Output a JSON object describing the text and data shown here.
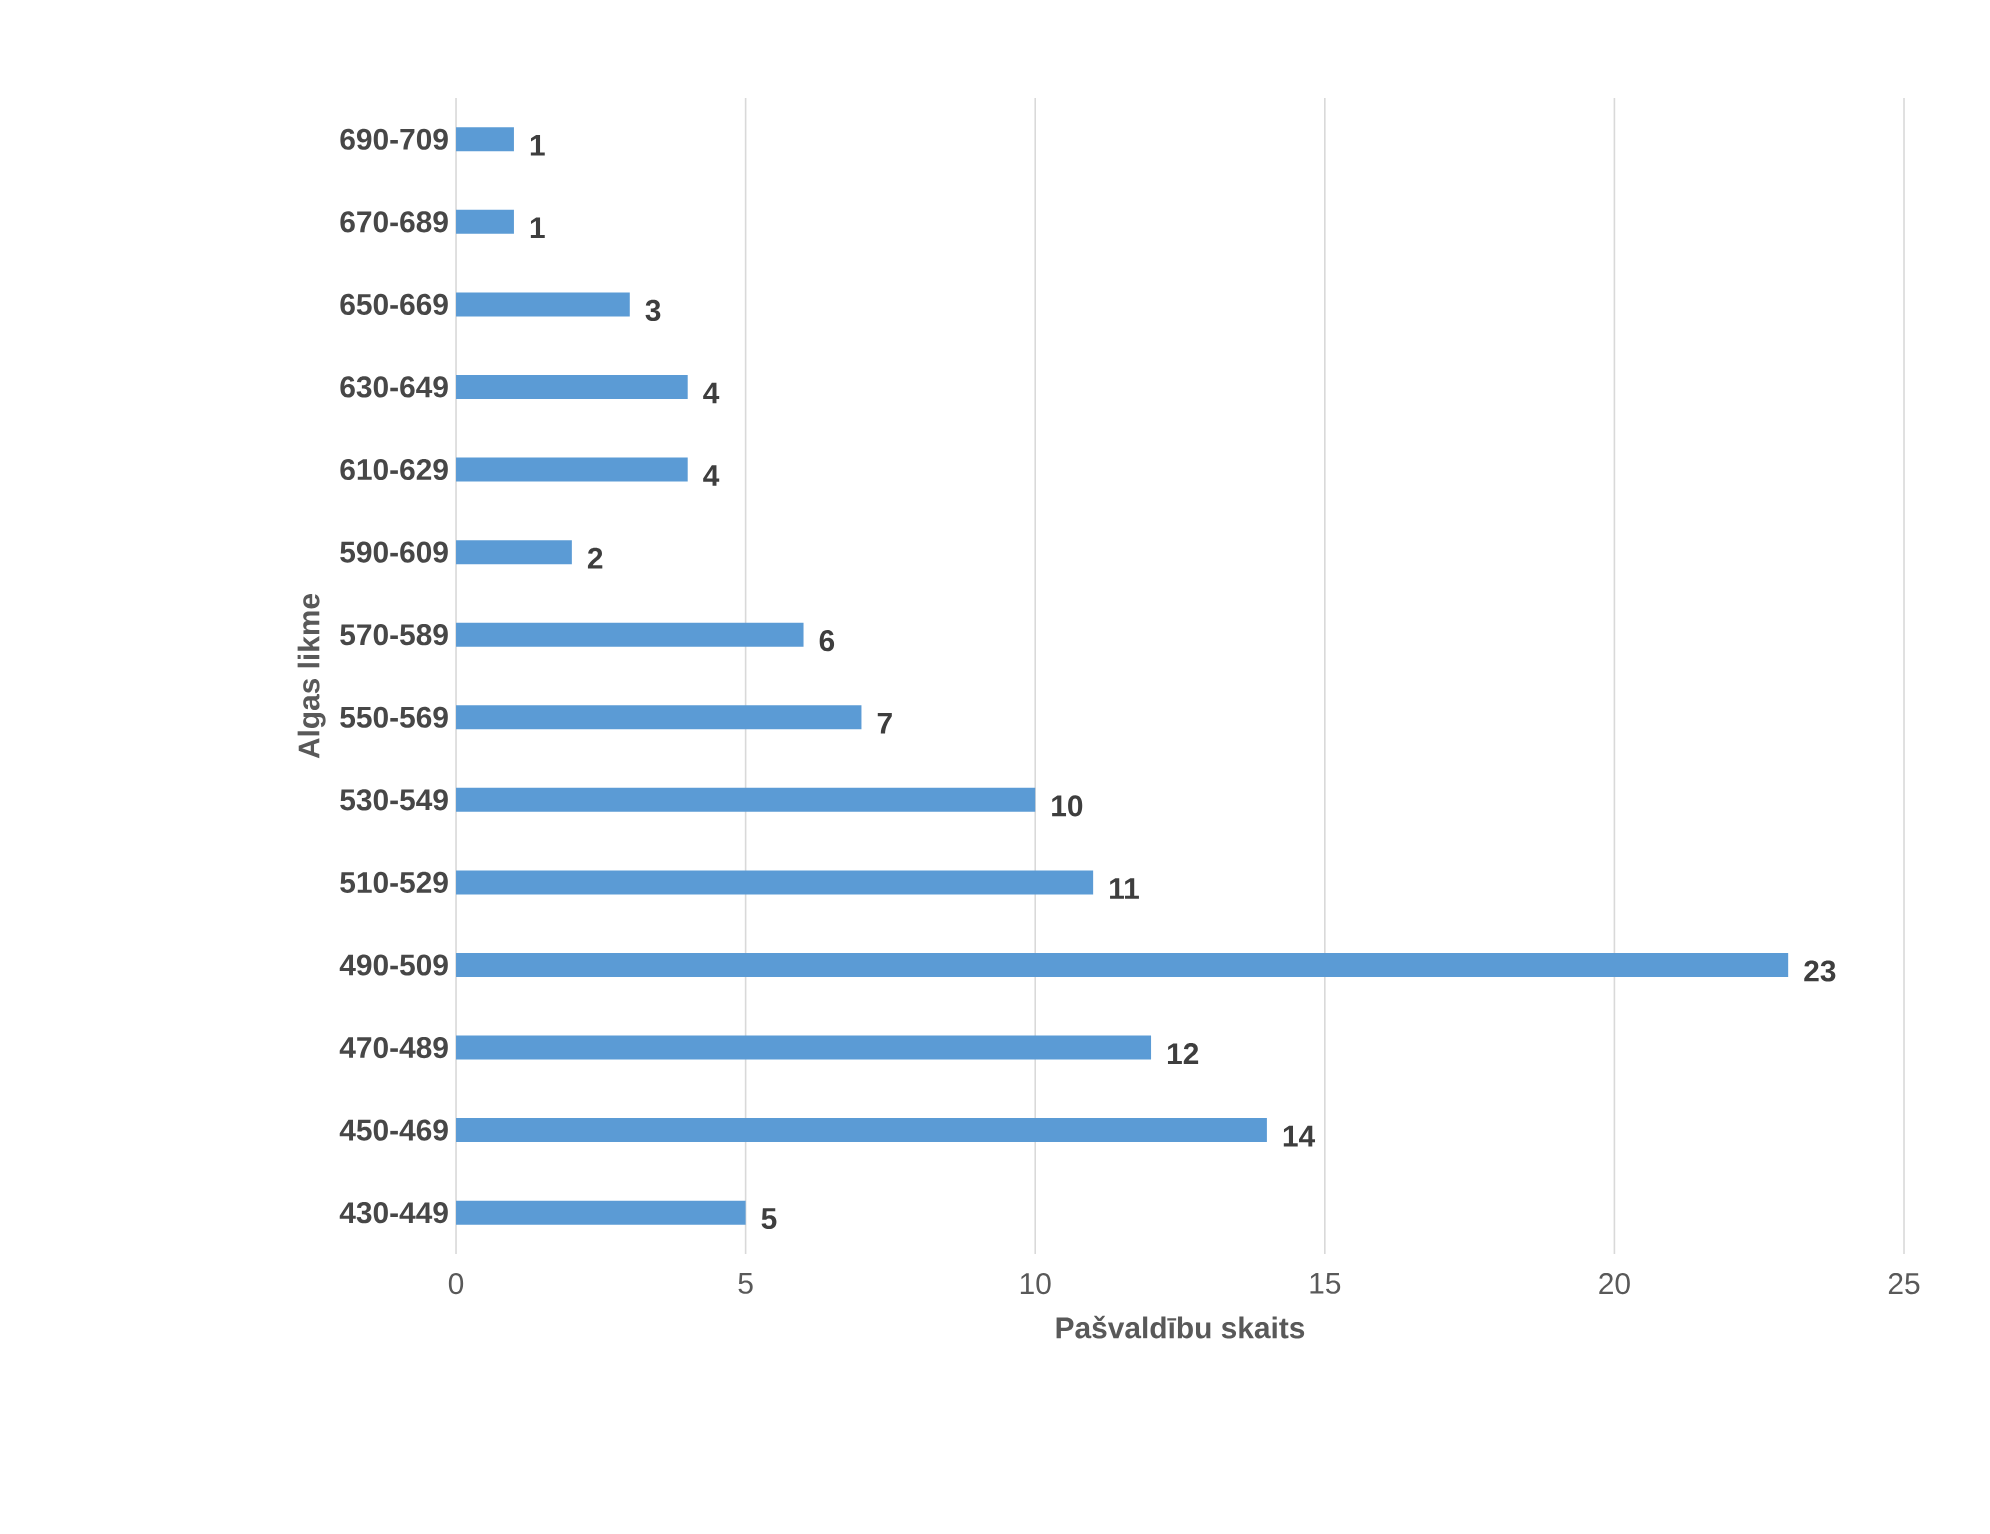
{
  "chart_data": {
    "type": "bar",
    "orientation": "horizontal",
    "xlabel": "Pašvaldību skaits",
    "ylabel": "Algas likme",
    "categories": [
      "690-709",
      "670-689",
      "650-669",
      "630-649",
      "610-629",
      "590-609",
      "570-589",
      "550-569",
      "530-549",
      "510-529",
      "490-509",
      "470-489",
      "450-469",
      "430-449"
    ],
    "values": [
      1,
      1,
      3,
      4,
      4,
      2,
      6,
      7,
      10,
      11,
      23,
      12,
      14,
      5
    ],
    "color": "#5b9bd5",
    "xlim": [
      0,
      25
    ],
    "xticks": [
      0,
      5,
      10,
      15,
      20,
      25
    ],
    "grid": "x",
    "data_labels": true
  }
}
